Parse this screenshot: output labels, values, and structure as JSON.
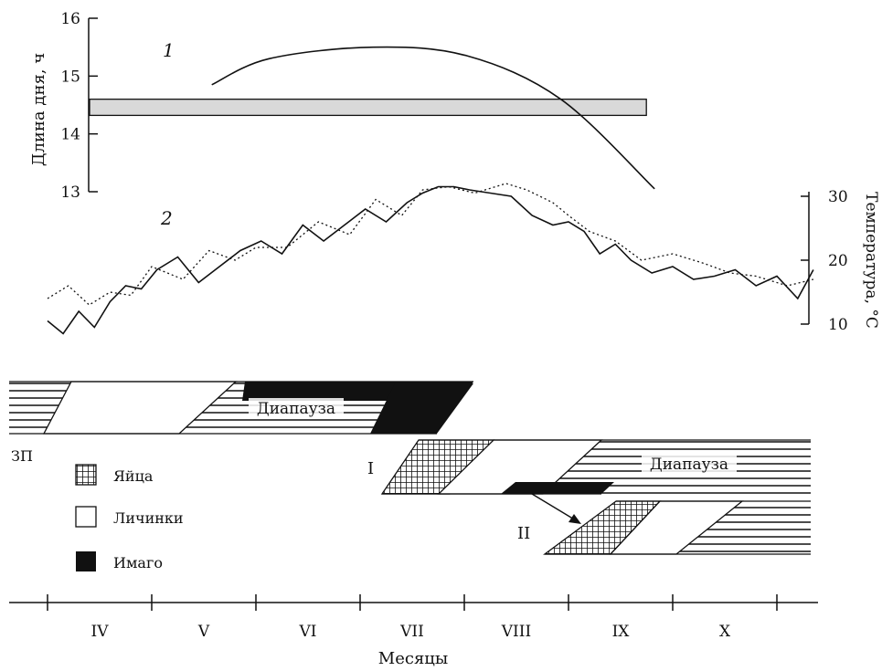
{
  "chart_data": [
    {
      "type": "line",
      "id": "day-length",
      "ylabel": "Длина дня, ч",
      "ylim": [
        13,
        16
      ],
      "yticks": [
        "16",
        "15",
        "14",
        "13"
      ],
      "curve_label": "1",
      "series": [
        {
          "x": [
            "IV",
            "V",
            "VI",
            "VII",
            "VIII",
            "IX"
          ],
          "x_month_pos": [
            1.05,
            1.6,
            2.6,
            3.5,
            4.4,
            5.3
          ],
          "values": [
            14.85,
            15.3,
            15.5,
            15.35,
            14.6,
            13.05
          ]
        }
      ],
      "threshold_band": {
        "from": 14.32,
        "to": 14.6,
        "x_month_pos": [
          0,
          5.3
        ]
      }
    },
    {
      "type": "line",
      "id": "temperature",
      "ylabel": "Температура, °C",
      "ylim": [
        10,
        30
      ],
      "yticks": [
        "30",
        "20",
        "10"
      ],
      "curve_label": "2",
      "series": [
        {
          "style": "solid",
          "x_month_pos": [
            0.0,
            0.15,
            0.3,
            0.45,
            0.6,
            0.75,
            0.9,
            1.05,
            1.25,
            1.45,
            1.65,
            1.85,
            2.05,
            2.25,
            2.45,
            2.65,
            2.85,
            3.05,
            3.25,
            3.45,
            3.6,
            3.75,
            3.9,
            4.05,
            4.25,
            4.45,
            4.65,
            4.85,
            5.0,
            5.15,
            5.3,
            5.45,
            5.6,
            5.8,
            6.0,
            6.2,
            6.4,
            6.6,
            6.8,
            7.0,
            7.2,
            7.35
          ],
          "values": [
            10.5,
            8.5,
            12,
            9.5,
            13.5,
            16,
            15.5,
            18.5,
            20.5,
            16.5,
            19,
            21.5,
            23,
            21,
            25.5,
            23,
            25.5,
            28,
            26,
            29,
            30.5,
            31.5,
            31.5,
            31,
            30.5,
            30,
            27,
            25.5,
            26,
            24.5,
            21,
            22.5,
            20,
            18,
            19,
            17,
            17.5,
            18.5,
            16,
            17.5,
            14,
            18.5
          ]
        },
        {
          "style": "dotted",
          "x_month_pos": [
            0.0,
            0.2,
            0.4,
            0.6,
            0.8,
            1.0,
            1.3,
            1.55,
            1.8,
            2.0,
            2.3,
            2.6,
            2.9,
            3.15,
            3.4,
            3.6,
            3.85,
            4.1,
            4.4,
            4.6,
            4.85,
            5.0,
            5.2,
            5.45,
            5.7,
            6.0,
            6.3,
            6.55,
            6.8,
            7.1,
            7.35
          ],
          "values": [
            14,
            16,
            13,
            15,
            14.5,
            19,
            17,
            21.5,
            20,
            22,
            22,
            26,
            24,
            29.5,
            27,
            31,
            31.5,
            30.5,
            32,
            31,
            29,
            27,
            24.5,
            23,
            20,
            21,
            19.5,
            18,
            17.5,
            16,
            17
          ]
        }
      ]
    }
  ],
  "phenology": {
    "overwintering_label": "ЗП",
    "generation_1_label": "I",
    "generation_2_label": "II",
    "diapause_label": "Диапауза"
  },
  "legend": {
    "eggs": "Яйца",
    "larvae": "Личинки",
    "adults": "Имаго"
  },
  "month_axis": {
    "months": [
      "IV",
      "V",
      "VI",
      "VII",
      "VIII",
      "IX",
      "X"
    ],
    "xlabel": "Месяцы"
  }
}
